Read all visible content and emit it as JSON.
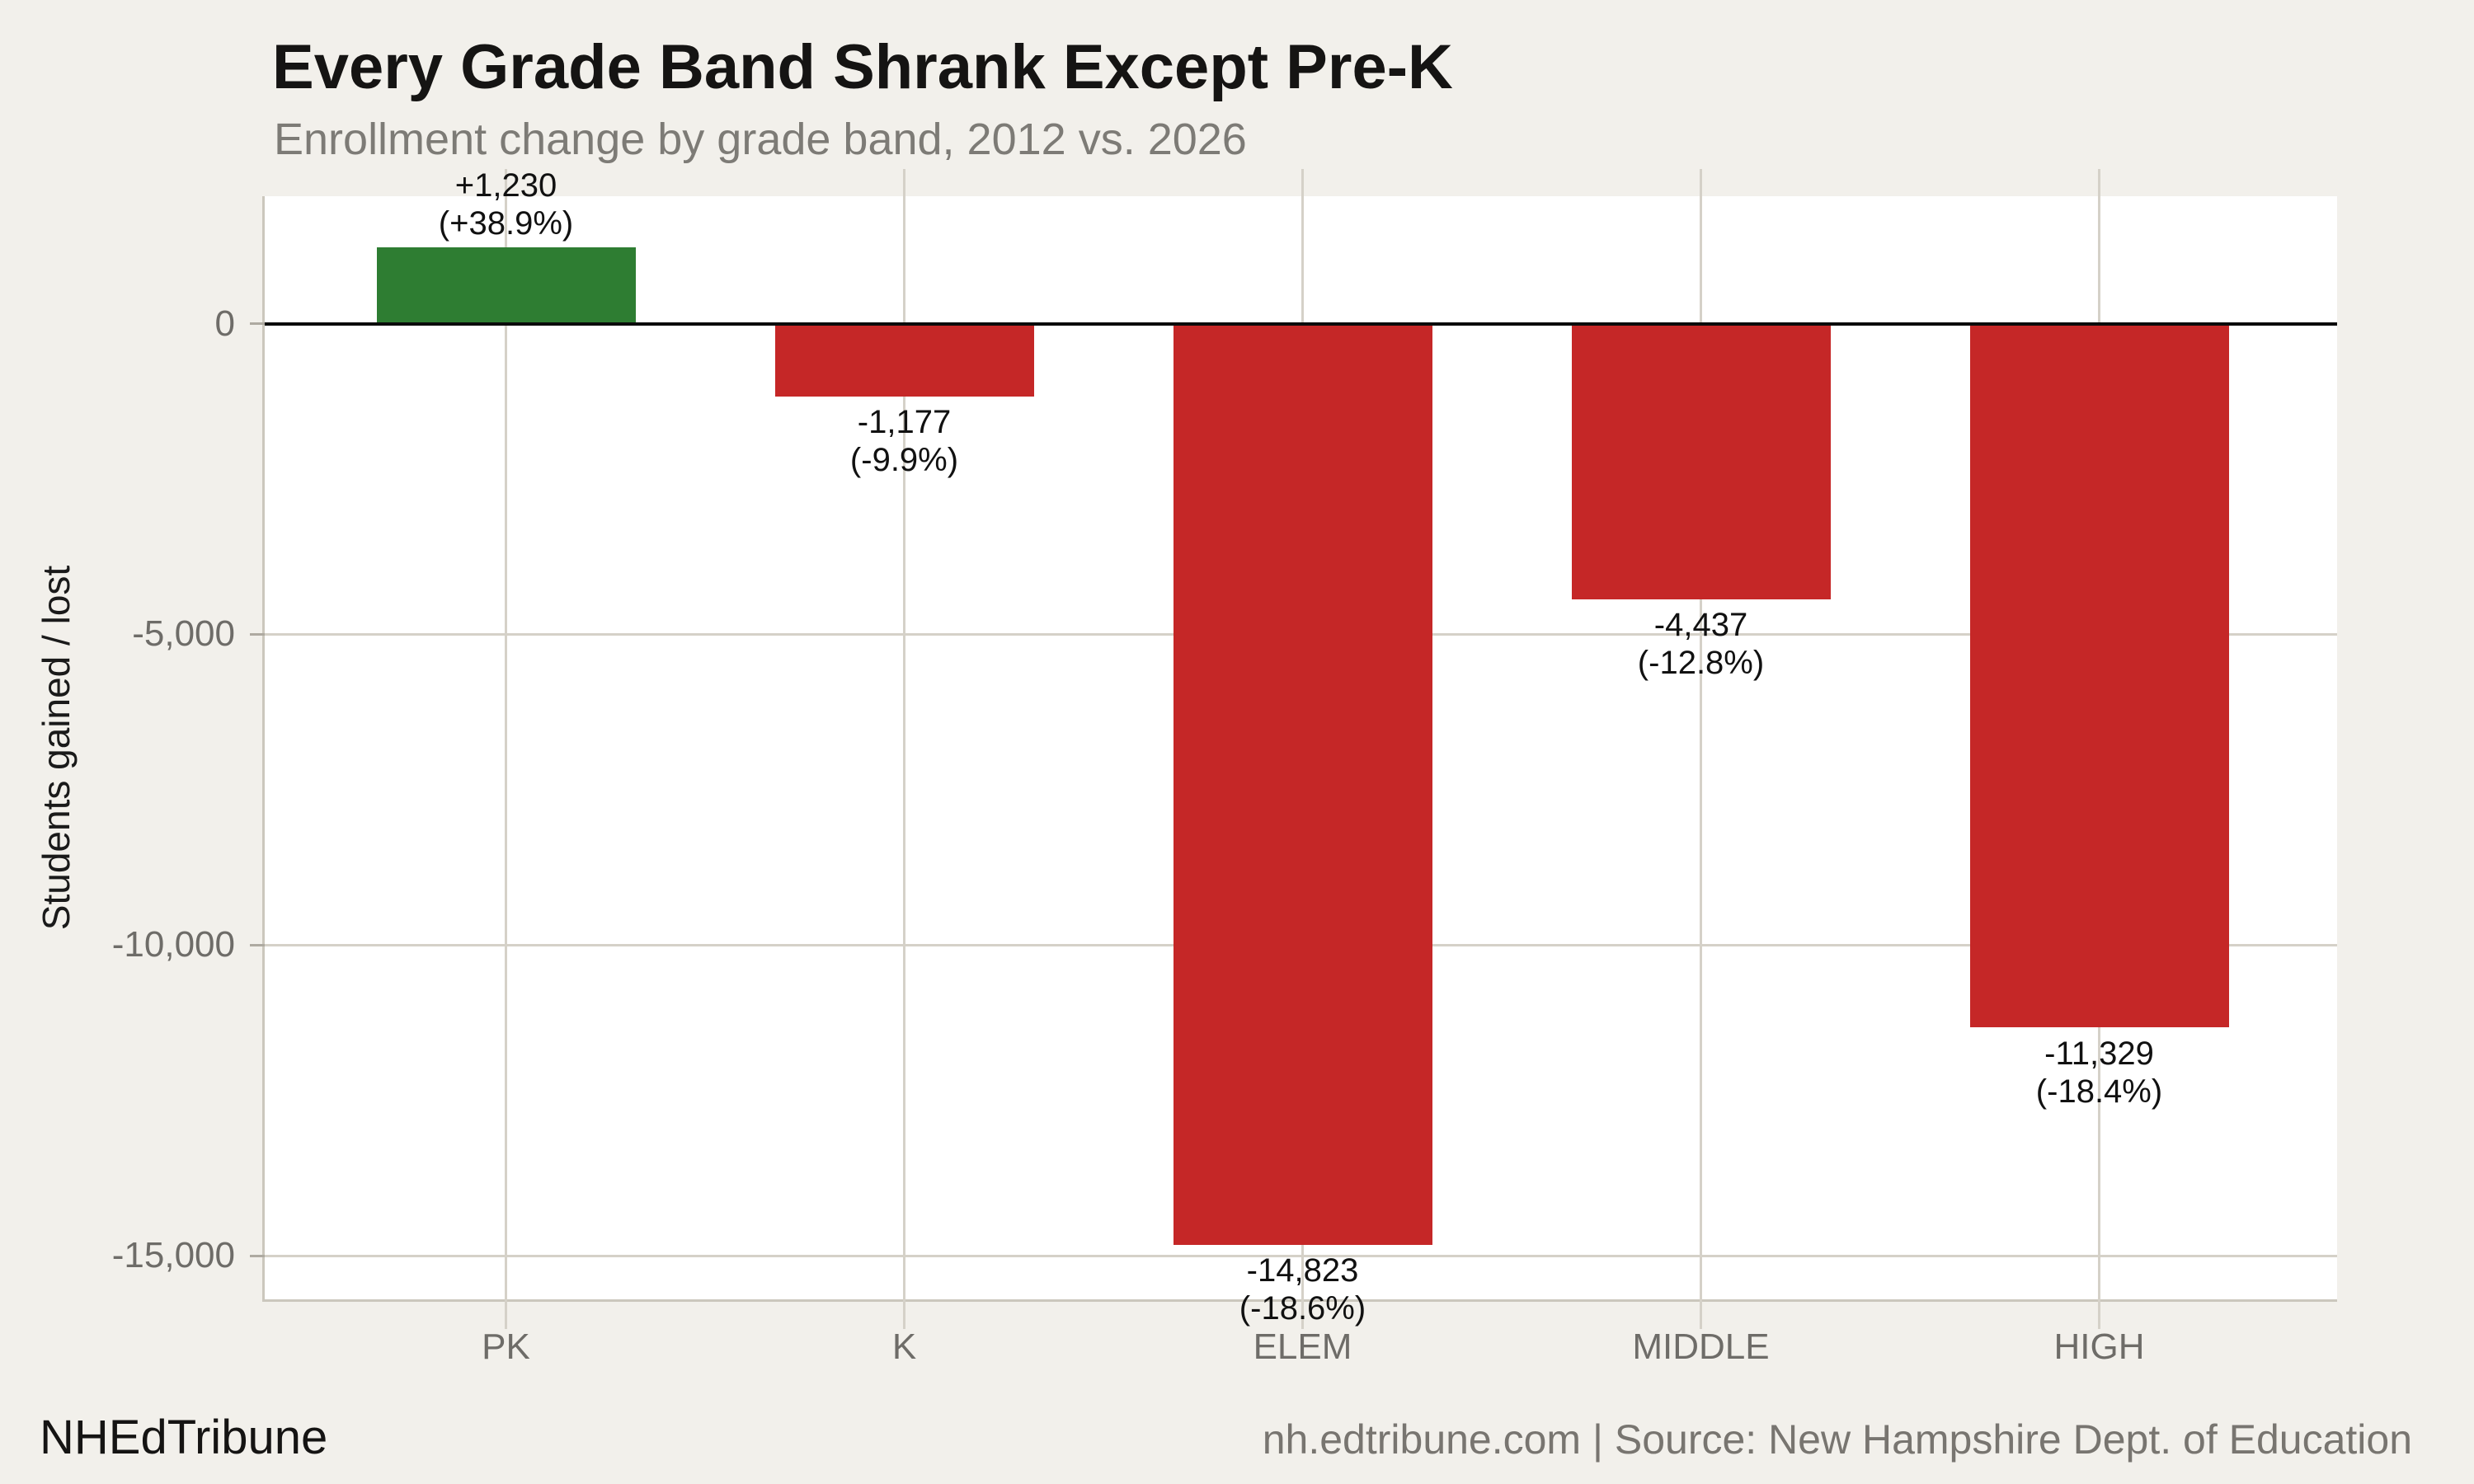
{
  "footer": {
    "brand": "NHEdTribune",
    "source": "nh.edtribune.com | Source: New Hampshire Dept. of Education"
  },
  "chart_data": {
    "type": "bar",
    "title": "Every Grade Band Shrank Except Pre-K",
    "subtitle": "Enrollment change by grade band, 2012 vs. 2026",
    "ylabel": "Students gained / lost",
    "xlabel": "",
    "categories": [
      "PK",
      "K",
      "ELEM",
      "MIDDLE",
      "HIGH"
    ],
    "values": [
      1230,
      -1177,
      -14823,
      -4437,
      -11329
    ],
    "value_labels": [
      "+1,230",
      "-1,177",
      "-14,823",
      "-4,437",
      "-11,329"
    ],
    "percent_changes": [
      38.9,
      -9.9,
      -18.6,
      -12.8,
      -18.4
    ],
    "percent_labels": [
      "(+38.9%)",
      "(-9.9%)",
      "(-18.6%)",
      "(-12.8%)",
      "(-18.4%)"
    ],
    "yticks": {
      "values": [
        0,
        -5000,
        -10000,
        -15000
      ],
      "labels": [
        "0",
        "-5,000",
        "-10,000",
        "-15,000"
      ]
    },
    "ylim": [
      -15700,
      2050
    ],
    "grid": true,
    "legend": false,
    "colors": {
      "positive": "#2E7D32",
      "negative": "#C52727",
      "zero_line": "#0B0B0B",
      "gridline": "#D5D1C8",
      "background": "#F2F0EB",
      "plot_background": "#FFFFFF"
    }
  }
}
